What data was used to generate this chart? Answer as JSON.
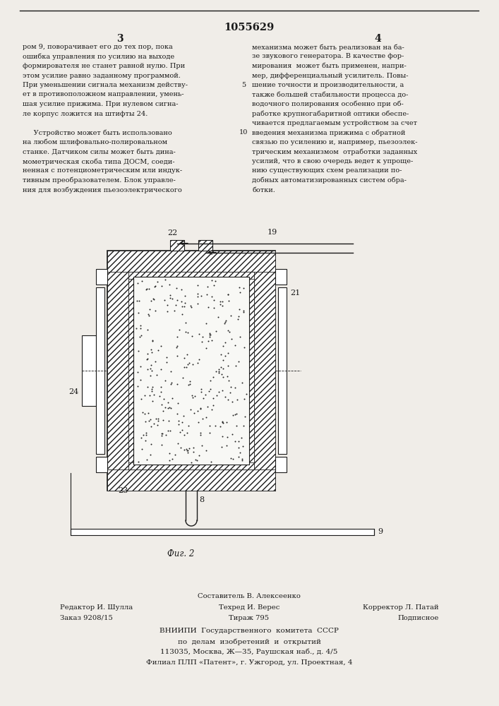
{
  "title": "1055629",
  "page_col_left": "3",
  "page_col_right": "4",
  "text_left": [
    "ром 9, поворачивает его до тех пор, пока",
    "ошибка управления по усилию на выходе",
    "формирователя не станет равной нулю. При",
    "этом усилие равно заданному программой.",
    "При уменьшении сигнала механизм действу-",
    "ет в противоположном направлении, умень-",
    "шая усилие прижима. При нулевом сигна-",
    "ле корпус ложится на штифты 24.",
    "",
    "     Устройство может быть использовано",
    "на любом шлифовально-полировальном",
    "станке. Датчиком силы может быть дина-",
    "мометрическая скоба типа ДОСМ, соеди-",
    "ненная с потенциометрическим или индук-",
    "тивным преобразователем. Блок управле-",
    "ния для возбуждения пьезоэлектрического"
  ],
  "text_right": [
    "механизма может быть реализован на ба-",
    "зе звукового генератора. В качестве фор-",
    "мирования  может быть применен, напри-",
    "мер, дифференциальный усилитель. Повы-",
    "шение точности и производительности, а",
    "также большей стабильности процесса до-",
    "водочного полирования особенно при об-",
    "работке крупногабаритной оптики обеспе-",
    "чивается предлагаемым устройством за счет",
    "введения механизма прижима с обратной",
    "связью по усилению и, например, пьезоэлек-",
    "трическим механизмом  отработки заданных",
    "усилий, что в свою очередь ведет к упроще-",
    "нию существующих схем реализации по-",
    "добных автоматизированных систем обра-",
    "ботки."
  ],
  "line_number": "5",
  "line_number2": "10",
  "fig_caption": "Фиг. 2",
  "footer_line1_left": "Редактор И. Шулла",
  "footer_line1_center": "Техред И. Верес",
  "footer_line1_right": "Корректор Л. Патай",
  "footer_line2_left": "Заказ 9208/15",
  "footer_line2_center": "Тираж 795",
  "footer_line2_right": "Подписное",
  "footer_line0_center": "Составитель В. Алексеенко",
  "footer_vniip1": "ВНИИПИ  Государственного  комитета  СССР",
  "footer_vniip2": "по  делам  изобретений  и  открытий",
  "footer_vniip3": "113035, Москва, Ж—35, Раушская наб., д. 4/5",
  "footer_vniip4": "Филиал ПЛП «Патент», г. Ужгород, ул. Проектная, 4",
  "bg_color": "#f0ede8",
  "text_color": "#1a1a1a",
  "drawing_line_color": "#1a1a1a"
}
